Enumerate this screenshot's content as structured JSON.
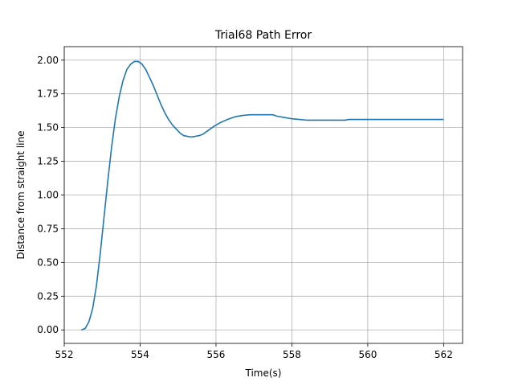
{
  "chart_data": {
    "type": "line",
    "title": "Trial68 Path Error",
    "xlabel": "Time(s)",
    "ylabel": "Distance from straight line",
    "xlim": [
      552,
      562.5
    ],
    "ylim": [
      -0.1,
      2.1
    ],
    "xticks": [
      552,
      554,
      556,
      558,
      560,
      562
    ],
    "yticks": [
      0.0,
      0.25,
      0.5,
      0.75,
      1.0,
      1.25,
      1.5,
      1.75,
      2.0
    ],
    "xtick_labels": [
      "552",
      "554",
      "556",
      "558",
      "560",
      "562"
    ],
    "ytick_labels": [
      "0.00",
      "0.25",
      "0.50",
      "0.75",
      "1.00",
      "1.25",
      "1.50",
      "1.75",
      "2.00"
    ],
    "grid": true,
    "series": [
      {
        "color": "#1f77b4",
        "x": [
          552.45,
          552.55,
          552.65,
          552.75,
          552.85,
          552.95,
          553.05,
          553.15,
          553.25,
          553.35,
          553.45,
          553.55,
          553.65,
          553.75,
          553.85,
          553.95,
          554.05,
          554.15,
          554.25,
          554.35,
          554.45,
          554.55,
          554.65,
          554.75,
          554.85,
          554.95,
          555.05,
          555.15,
          555.25,
          555.35,
          555.45,
          555.55,
          555.65,
          555.75,
          555.85,
          555.95,
          556.1,
          556.3,
          556.5,
          556.7,
          556.9,
          557.1,
          557.3,
          557.5,
          557.6,
          557.8,
          558.0,
          558.2,
          558.4,
          558.6,
          558.8,
          559.0,
          559.2,
          559.4,
          559.5,
          559.6,
          560.0,
          560.5,
          561.0,
          561.5,
          562.0
        ],
        "values": [
          0.0,
          0.01,
          0.06,
          0.16,
          0.33,
          0.57,
          0.84,
          1.11,
          1.36,
          1.57,
          1.73,
          1.85,
          1.93,
          1.97,
          1.99,
          1.99,
          1.97,
          1.93,
          1.87,
          1.81,
          1.74,
          1.67,
          1.61,
          1.56,
          1.52,
          1.49,
          1.46,
          1.44,
          1.435,
          1.43,
          1.435,
          1.44,
          1.45,
          1.47,
          1.49,
          1.51,
          1.535,
          1.56,
          1.58,
          1.59,
          1.595,
          1.595,
          1.595,
          1.595,
          1.585,
          1.575,
          1.565,
          1.56,
          1.555,
          1.555,
          1.555,
          1.555,
          1.555,
          1.555,
          1.56,
          1.56,
          1.56,
          1.56,
          1.56,
          1.56,
          1.56
        ]
      }
    ]
  }
}
